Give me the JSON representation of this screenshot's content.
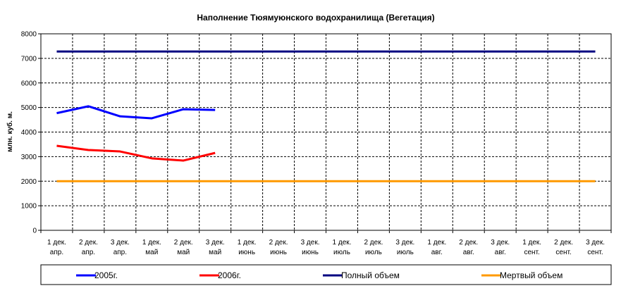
{
  "chart_data": {
    "type": "line",
    "title": "Наполнение Тюямуюнского водохранилища (Вегетация)",
    "y_label": "млн. куб. м.",
    "categories": [
      [
        "1 дек.",
        "апр."
      ],
      [
        "2 дек.",
        "апр."
      ],
      [
        "3 дек.",
        "апр."
      ],
      [
        "1 дек.",
        "май"
      ],
      [
        "2 дек.",
        "май"
      ],
      [
        "3 дек.",
        "май"
      ],
      [
        "1 дек.",
        "июнь"
      ],
      [
        "2 дек.",
        "июнь"
      ],
      [
        "3 дек.",
        "июнь"
      ],
      [
        "1 дек.",
        "июль"
      ],
      [
        "2 дек.",
        "июль"
      ],
      [
        "3 дек.",
        "июль"
      ],
      [
        "1 дек.",
        "авг."
      ],
      [
        "2 дек.",
        "авг."
      ],
      [
        "3 дек.",
        "авг."
      ],
      [
        "1 дек.",
        "сент."
      ],
      [
        "2 дек.",
        "сент."
      ],
      [
        "3 дек.",
        "сент."
      ]
    ],
    "series": [
      {
        "name": "2005г.",
        "color": "#0000ff",
        "values": [
          4770,
          5050,
          4640,
          4560,
          4930,
          4900,
          null,
          null,
          null,
          null,
          null,
          null,
          null,
          null,
          null,
          null,
          null,
          null
        ]
      },
      {
        "name": "2006г.",
        "color": "#ff0000",
        "values": [
          3440,
          3270,
          3210,
          2930,
          2840,
          3150,
          null,
          null,
          null,
          null,
          null,
          null,
          null,
          null,
          null,
          null,
          null,
          null
        ]
      },
      {
        "name": "Полный объем",
        "color": "#000080",
        "values": [
          7280,
          7280,
          7280,
          7280,
          7280,
          7280,
          7280,
          7280,
          7280,
          7280,
          7280,
          7280,
          7280,
          7280,
          7280,
          7280,
          7280,
          7280
        ]
      },
      {
        "name": "Мертвый объем",
        "color": "#ff9900",
        "values": [
          2000,
          2000,
          2000,
          2000,
          2000,
          2000,
          2000,
          2000,
          2000,
          2000,
          2000,
          2000,
          2000,
          2000,
          2000,
          2000,
          2000,
          2000
        ]
      }
    ],
    "ylim": [
      0,
      8000
    ],
    "yticks": [
      0,
      1000,
      2000,
      3000,
      4000,
      5000,
      6000,
      7000,
      8000
    ],
    "grid": true
  }
}
